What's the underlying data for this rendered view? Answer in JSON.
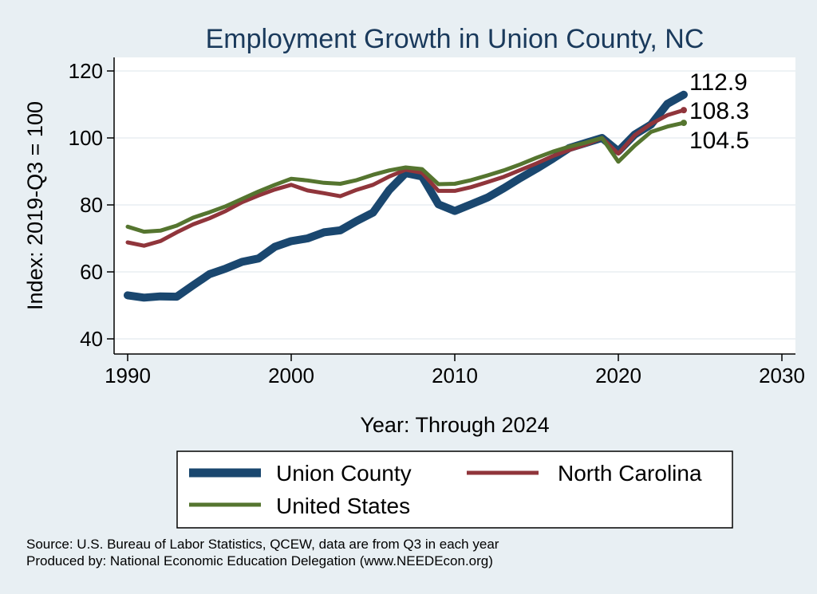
{
  "chart_data": {
    "type": "line",
    "title": "Employment Growth in Union County, NC",
    "xlabel": "Year: Through 2024",
    "ylabel": "Index: 2019-Q3 = 100",
    "xlim": [
      1990,
      2030
    ],
    "ylim": [
      40,
      120
    ],
    "xticks": [
      1990,
      2000,
      2010,
      2020,
      2030
    ],
    "yticks": [
      40,
      60,
      80,
      100,
      120
    ],
    "grid": true,
    "legend_position": "bottom",
    "x": [
      1990,
      1991,
      1992,
      1993,
      1994,
      1995,
      1996,
      1997,
      1998,
      1999,
      2000,
      2001,
      2002,
      2003,
      2004,
      2005,
      2006,
      2007,
      2008,
      2009,
      2010,
      2011,
      2012,
      2013,
      2014,
      2015,
      2016,
      2017,
      2018,
      2019,
      2020,
      2021,
      2022,
      2023,
      2024
    ],
    "series": [
      {
        "name": "Union  County",
        "color": "#1a476f",
        "end_label": "112.9",
        "values": [
          53.0,
          52.3,
          52.7,
          52.6,
          56.0,
          59.3,
          61.0,
          63.0,
          64.0,
          67.5,
          69.2,
          70.0,
          71.8,
          72.4,
          75.2,
          77.7,
          84.5,
          89.5,
          88.5,
          80.2,
          78.2,
          80.2,
          82.2,
          85.0,
          88.0,
          90.8,
          93.8,
          97.0,
          98.5,
          100.0,
          96.0,
          101.0,
          104.0,
          110.2,
          112.9
        ]
      },
      {
        "name": "North Carolina",
        "color": "#90353b",
        "end_label": "108.3",
        "values": [
          68.8,
          67.8,
          69.2,
          71.8,
          74.2,
          76.0,
          78.2,
          80.8,
          82.8,
          84.6,
          86.0,
          84.3,
          83.5,
          82.6,
          84.5,
          86.0,
          88.5,
          90.5,
          89.6,
          84.2,
          84.2,
          85.3,
          86.8,
          88.4,
          90.4,
          92.4,
          94.6,
          96.4,
          98.0,
          100.0,
          95.3,
          100.8,
          104.2,
          106.8,
          108.3
        ]
      },
      {
        "name": "United States",
        "color": "#55752f",
        "end_label": "104.5",
        "values": [
          73.5,
          72.0,
          72.3,
          73.8,
          76.2,
          77.8,
          79.6,
          81.8,
          84.0,
          86.0,
          87.8,
          87.3,
          86.6,
          86.3,
          87.4,
          89.0,
          90.3,
          91.2,
          90.7,
          86.2,
          86.3,
          87.4,
          88.8,
          90.3,
          92.1,
          94.1,
          95.9,
          97.4,
          98.6,
          100.0,
          92.9,
          97.7,
          101.8,
          103.4,
          104.5
        ]
      }
    ]
  },
  "legend": {
    "items": [
      {
        "label": "Union  County",
        "color": "#1a476f"
      },
      {
        "label": "North Carolina",
        "color": "#90353b"
      },
      {
        "label": "United States",
        "color": "#55752f"
      }
    ]
  },
  "footer": {
    "source": "Source: U.S. Bureau of Labor Statistics, QCEW, data are from Q3 in each year",
    "produced_by": "Produced by: National Economic Education Delegation (www.NEEDEcon.org)"
  }
}
